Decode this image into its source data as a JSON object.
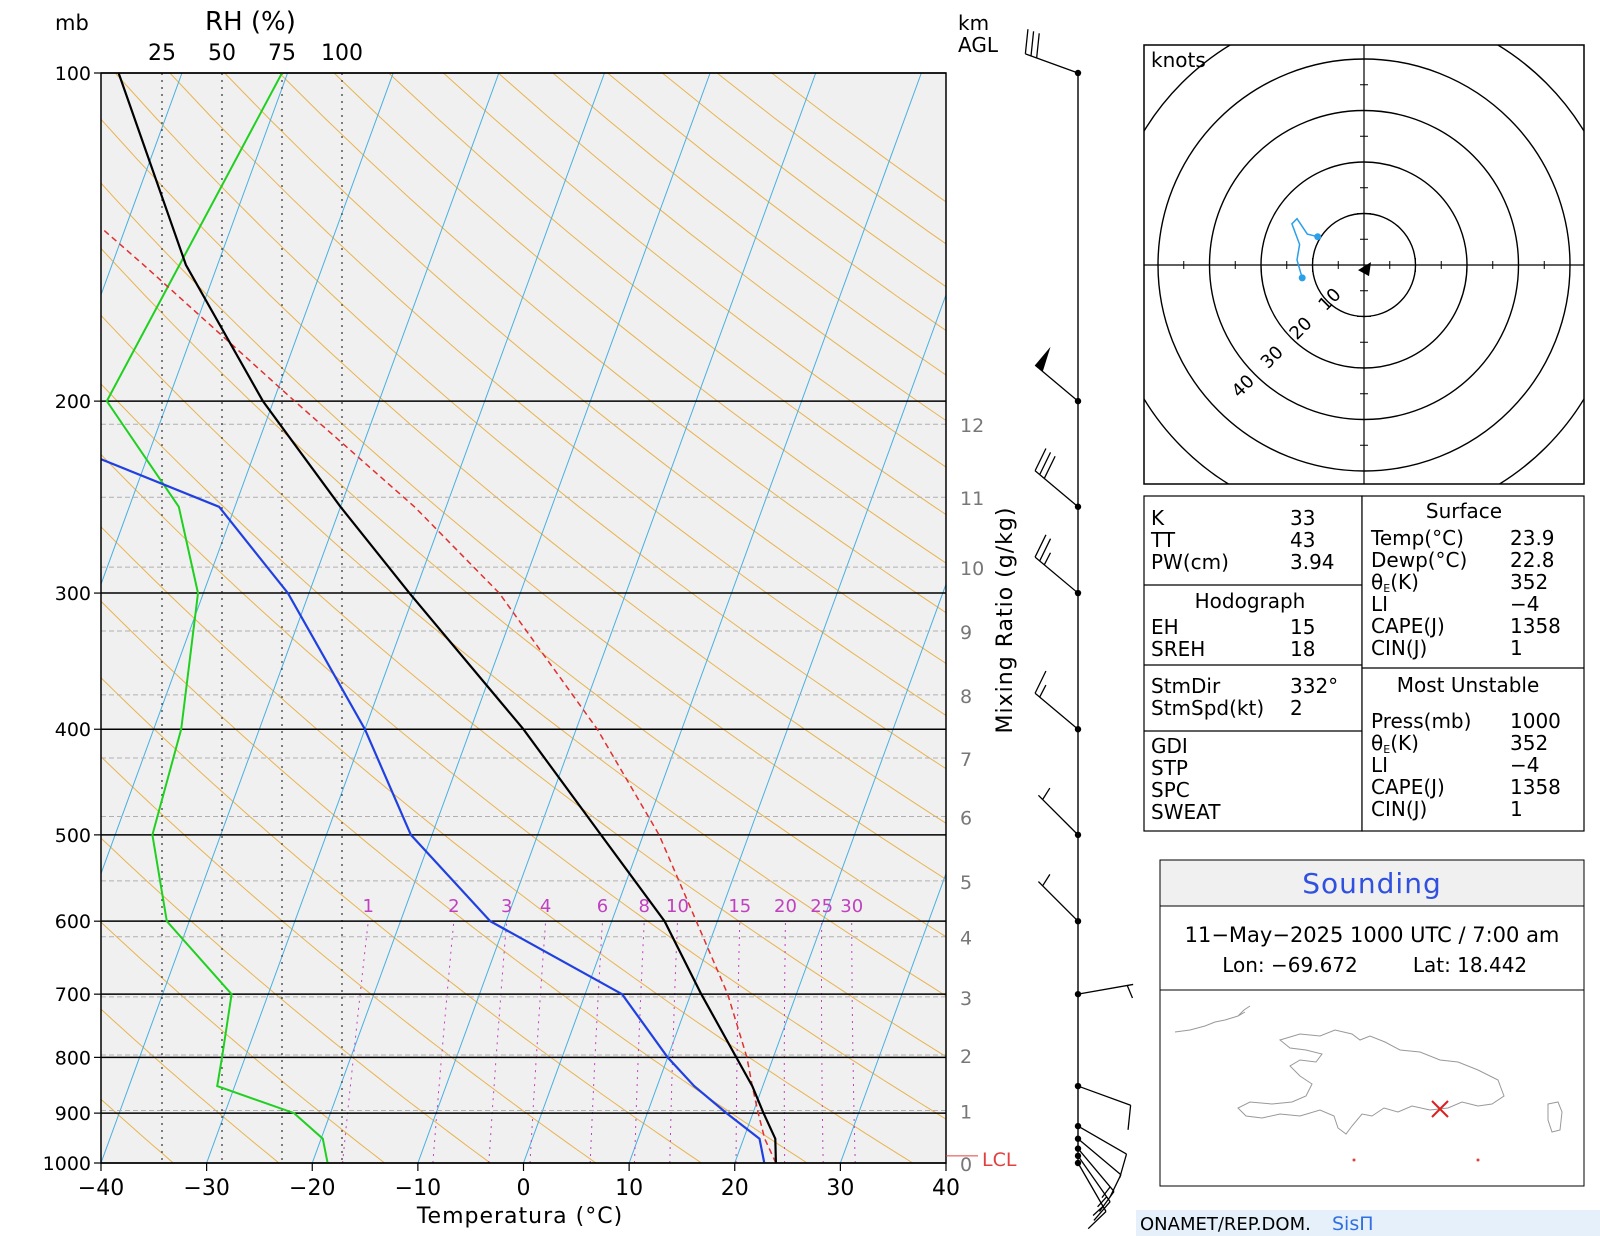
{
  "skewt": {
    "pressure_unit": "mb",
    "rh_label": "RH (%)",
    "rh_ticks": [
      "25",
      "50",
      "75",
      "100"
    ],
    "height_unit_1": "km",
    "height_unit_2": "AGL",
    "xlabel": "Temperatura (°C)",
    "mixing_label": "Mixing Ratio (g/kg)",
    "lcl_label": "LCL",
    "footer_org": "ONAMET/REP.DOM.",
    "footer_brand": "SisΠ",
    "colors": {
      "temperature": "#000000",
      "dewpoint": "#2040e0",
      "rh": "#20d020",
      "parcel": "#e03030",
      "isotherm": "#4ab0e0",
      "dry_adiabat": "#e8b450",
      "mixing_ratio": "#c040c0",
      "background": "#f0f0f0"
    }
  },
  "chart_data": {
    "type": "skew-t",
    "ylim": [
      1000,
      100
    ],
    "xlim": [
      -40,
      40
    ],
    "pressure_labels": [
      {
        "p": 100,
        "label": "100"
      },
      {
        "p": 200,
        "label": "200"
      },
      {
        "p": 300,
        "label": "300"
      },
      {
        "p": 400,
        "label": "400"
      },
      {
        "p": 500,
        "label": "500"
      },
      {
        "p": 600,
        "label": "600"
      },
      {
        "p": 700,
        "label": "700"
      },
      {
        "p": 800,
        "label": "800"
      },
      {
        "p": 900,
        "label": "900"
      },
      {
        "p": 1000,
        "label": "1000"
      }
    ],
    "temperature_ticks": [
      {
        "t": -40,
        "label": "−40"
      },
      {
        "t": -30,
        "label": "−30"
      },
      {
        "t": -20,
        "label": "−20"
      },
      {
        "t": -10,
        "label": "−10"
      },
      {
        "t": 0,
        "label": "0"
      },
      {
        "t": 10,
        "label": "10"
      },
      {
        "t": 20,
        "label": "20"
      },
      {
        "t": 30,
        "label": "30"
      },
      {
        "t": 40,
        "label": "40"
      }
    ],
    "height_ticks": [
      {
        "p": 1000,
        "label": "0"
      },
      {
        "p": 895,
        "label": "1"
      },
      {
        "p": 796,
        "label": "2"
      },
      {
        "p": 704,
        "label": "3"
      },
      {
        "p": 620,
        "label": "4"
      },
      {
        "p": 551,
        "label": "5"
      },
      {
        "p": 481,
        "label": "6"
      },
      {
        "p": 425,
        "label": "7"
      },
      {
        "p": 372,
        "label": "8"
      },
      {
        "p": 325,
        "label": "9"
      },
      {
        "p": 284,
        "label": "10"
      },
      {
        "p": 245,
        "label": "11"
      },
      {
        "p": 210,
        "label": "12"
      }
    ],
    "mixing_ratio_labels": [
      {
        "w": 1,
        "label": "1"
      },
      {
        "w": 2,
        "label": "2"
      },
      {
        "w": 3,
        "label": "3"
      },
      {
        "w": 4,
        "label": "4"
      },
      {
        "w": 6,
        "label": "6"
      },
      {
        "w": 8,
        "label": "8"
      },
      {
        "w": 10,
        "label": "10"
      },
      {
        "w": 15,
        "label": "15"
      },
      {
        "w": 20,
        "label": "20"
      },
      {
        "w": 25,
        "label": "25"
      },
      {
        "w": 30,
        "label": "30"
      }
    ],
    "temperature": [
      {
        "p": 1000,
        "t": 23.9
      },
      {
        "p": 950,
        "t": 23.0
      },
      {
        "p": 900,
        "t": 21.0
      },
      {
        "p": 850,
        "t": 19.0
      },
      {
        "p": 800,
        "t": 16.5
      },
      {
        "p": 700,
        "t": 11.0
      },
      {
        "p": 600,
        "t": 5.0
      },
      {
        "p": 500,
        "t": -4.0
      },
      {
        "p": 400,
        "t": -15.0
      },
      {
        "p": 300,
        "t": -30.5
      },
      {
        "p": 250,
        "t": -40.0
      },
      {
        "p": 200,
        "t": -51.0
      },
      {
        "p": 150,
        "t": -63.0
      },
      {
        "p": 100,
        "t": -76.0
      }
    ],
    "dewpoint": [
      {
        "p": 1000,
        "t": 22.8
      },
      {
        "p": 950,
        "t": 21.5
      },
      {
        "p": 900,
        "t": 17.5
      },
      {
        "p": 850,
        "t": 13.5
      },
      {
        "p": 800,
        "t": 10.0
      },
      {
        "p": 700,
        "t": 3.5
      },
      {
        "p": 600,
        "t": -11.5
      },
      {
        "p": 500,
        "t": -22.0
      },
      {
        "p": 400,
        "t": -30.0
      },
      {
        "p": 300,
        "t": -42.0
      },
      {
        "p": 250,
        "t": -51.5
      },
      {
        "p": 200,
        "t": -80.0
      },
      {
        "p": 150,
        "t": -90.0
      },
      {
        "p": 100,
        "t": -100.0
      }
    ],
    "parcel": [
      {
        "p": 1000,
        "t": 23.9
      },
      {
        "p": 950,
        "t": 22.0
      },
      {
        "p": 900,
        "t": 20.5
      },
      {
        "p": 850,
        "t": 19.0
      },
      {
        "p": 800,
        "t": 17.5
      },
      {
        "p": 700,
        "t": 13.5
      },
      {
        "p": 600,
        "t": 8.0
      },
      {
        "p": 500,
        "t": 1.5
      },
      {
        "p": 400,
        "t": -8.0
      },
      {
        "p": 300,
        "t": -22.0
      },
      {
        "p": 250,
        "t": -33.0
      },
      {
        "p": 200,
        "t": -48.0
      },
      {
        "p": 150,
        "t": -67.0
      },
      {
        "p": 110,
        "t": -88.0
      }
    ],
    "rh_profile": [
      {
        "p": 1000,
        "rh": 94
      },
      {
        "p": 950,
        "rh": 92
      },
      {
        "p": 900,
        "rh": 80
      },
      {
        "p": 850,
        "rh": 48
      },
      {
        "p": 800,
        "rh": 50
      },
      {
        "p": 700,
        "rh": 54
      },
      {
        "p": 600,
        "rh": 27
      },
      {
        "p": 500,
        "rh": 21
      },
      {
        "p": 400,
        "rh": 33
      },
      {
        "p": 300,
        "rh": 40
      },
      {
        "p": 250,
        "rh": 32
      },
      {
        "p": 200,
        "rh": 2
      },
      {
        "p": 100,
        "rh": 75
      }
    ],
    "lcl_pressure": 985,
    "wind_barbs": [
      {
        "p": 1000,
        "dir": 150,
        "spd": 15
      },
      {
        "p": 985,
        "dir": 145,
        "spd": 15
      },
      {
        "p": 970,
        "dir": 140,
        "spd": 15
      },
      {
        "p": 950,
        "dir": 130,
        "spd": 10
      },
      {
        "p": 925,
        "dir": 120,
        "spd": 10
      },
      {
        "p": 850,
        "dir": 110,
        "spd": 10
      },
      {
        "p": 700,
        "dir": 80,
        "spd": 5
      },
      {
        "p": 600,
        "dir": 315,
        "spd": 5
      },
      {
        "p": 500,
        "dir": 315,
        "spd": 5
      },
      {
        "p": 400,
        "dir": 310,
        "spd": 15
      },
      {
        "p": 300,
        "dir": 310,
        "spd": 25
      },
      {
        "p": 250,
        "dir": 310,
        "spd": 30
      },
      {
        "p": 200,
        "dir": 310,
        "spd": 50
      },
      {
        "p": 100,
        "dir": 290,
        "spd": 30
      }
    ]
  },
  "hodograph": {
    "unit": "knots",
    "ring_labels": [
      "10",
      "20",
      "30",
      "40"
    ],
    "trace": [
      {
        "u": -12,
        "v": -2.5
      },
      {
        "u": -13,
        "v": 1
      },
      {
        "u": -12.5,
        "v": 4
      },
      {
        "u": -14,
        "v": 8
      },
      {
        "u": -13,
        "v": 9
      },
      {
        "u": -11,
        "v": 6
      },
      {
        "u": -9,
        "v": 5.5
      }
    ],
    "storm_motion": {
      "u": 0,
      "v": -1
    }
  },
  "indices": {
    "left": {
      "rows1": [
        {
          "label": "K",
          "value": "33"
        },
        {
          "label": "TT",
          "value": "43"
        },
        {
          "label": "PW(cm)",
          "value": "3.94"
        }
      ],
      "hodograph_title": "Hodograph",
      "rows2": [
        {
          "label": "EH",
          "value": "15"
        },
        {
          "label": "SREH",
          "value": "18"
        }
      ],
      "rows3": [
        {
          "label": "StmDir",
          "value": "332°"
        },
        {
          "label": "StmSpd(kt)",
          "value": "2"
        }
      ],
      "rows4": [
        {
          "label": "GDI",
          "value": ""
        },
        {
          "label": "STP",
          "value": ""
        },
        {
          "label": "SPC",
          "value": ""
        },
        {
          "label": "SWEAT",
          "value": ""
        }
      ]
    },
    "right": {
      "surface_title": "Surface",
      "surface": [
        {
          "label": "Temp(°C)",
          "value": "23.9"
        },
        {
          "label": "Dewp(°C)",
          "value": "22.8"
        },
        {
          "label": "θE(K)",
          "value": "352"
        },
        {
          "label": "LI",
          "value": "−4"
        },
        {
          "label": "CAPE(J)",
          "value": "1358"
        },
        {
          "label": "CIN(J)",
          "value": "1"
        }
      ],
      "mu_title": "Most Unstable",
      "most_unstable": [
        {
          "label": "Press(mb)",
          "value": "1000"
        },
        {
          "label": "θE(K)",
          "value": "352"
        },
        {
          "label": "LI",
          "value": "−4"
        },
        {
          "label": "CAPE(J)",
          "value": "1358"
        },
        {
          "label": "CIN(J)",
          "value": "1"
        }
      ]
    }
  },
  "sounding": {
    "title": "Sounding",
    "datetime": "11−May−2025 1000 UTC / 7:00 am",
    "lon": "Lon: −69.672",
    "lat": "Lat: 18.442",
    "map_marker": "x-marker-icon"
  }
}
